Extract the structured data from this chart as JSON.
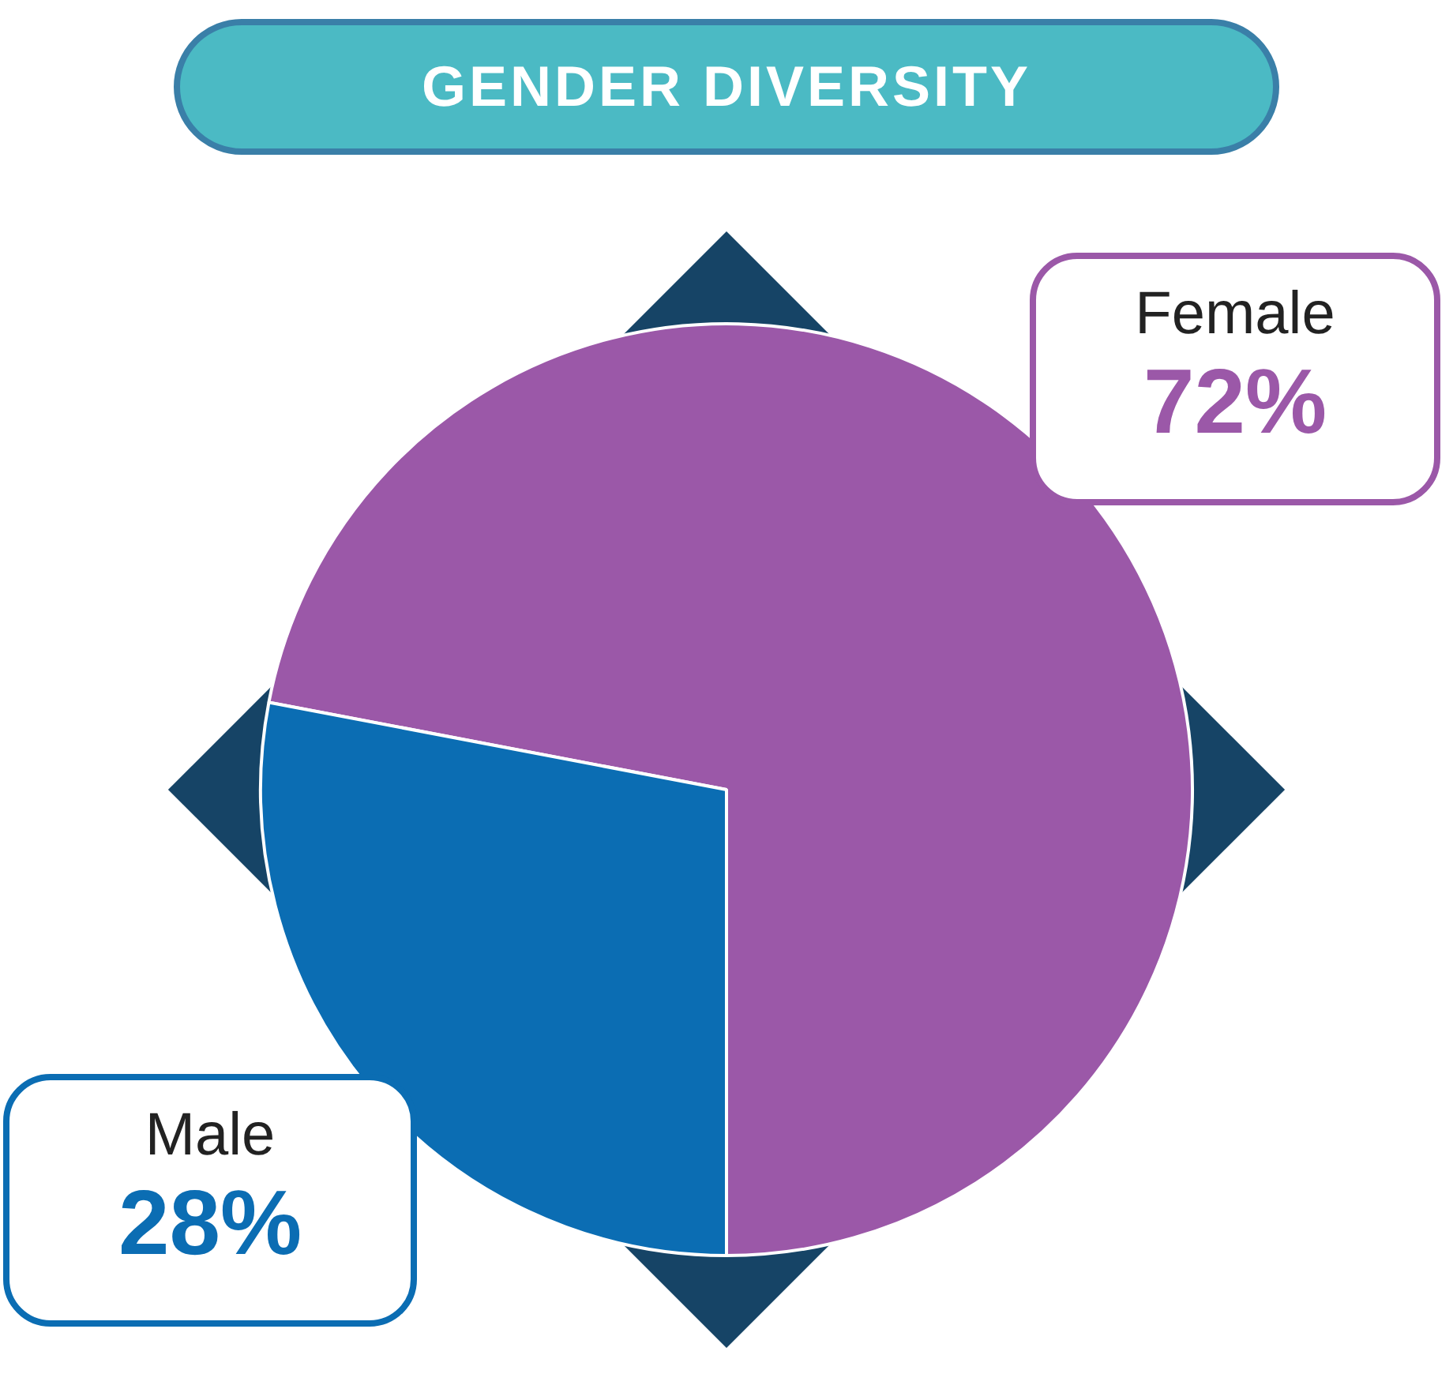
{
  "chart_data": {
    "type": "pie",
    "title": "GENDER DIVERSITY",
    "categories": [
      "Female",
      "Male"
    ],
    "values": [
      72,
      28
    ],
    "colors": [
      "#9b58a8",
      "#0b6db3"
    ],
    "value_labels": [
      "72%",
      "28%"
    ],
    "legend": false
  }
}
